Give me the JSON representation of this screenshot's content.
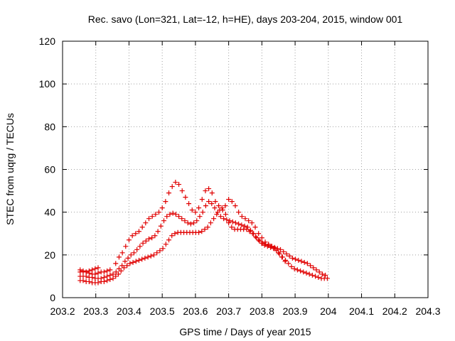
{
  "chart_data": {
    "type": "scatter",
    "title": "Rec. savo (Lon=321, Lat=-12, h=HE), days 203-204, 2015, window 001",
    "xlabel": "GPS time / Days of year 2015",
    "ylabel": "STEC from uqrg / TECUs",
    "xlim": [
      203.2,
      204.3
    ],
    "ylim": [
      0,
      120
    ],
    "x_ticks": [
      "203.2",
      "203.3",
      "203.4",
      "203.5",
      "203.6",
      "203.7",
      "203.8",
      "203.9",
      "204",
      "204.1",
      "204.2",
      "204.3"
    ],
    "y_ticks": [
      "0",
      "20",
      "40",
      "60",
      "80",
      "100",
      "120"
    ],
    "grid": true,
    "marker": "plus",
    "color": "#e00000",
    "points": [
      [
        203.253,
        8
      ],
      [
        203.262,
        8
      ],
      [
        203.271,
        7.5
      ],
      [
        203.28,
        7.5
      ],
      [
        203.289,
        7
      ],
      [
        203.298,
        7
      ],
      [
        203.307,
        7
      ],
      [
        203.316,
        7.5
      ],
      [
        203.325,
        7.5
      ],
      [
        203.334,
        8
      ],
      [
        203.343,
        8.5
      ],
      [
        203.253,
        10
      ],
      [
        203.262,
        10
      ],
      [
        203.271,
        10
      ],
      [
        203.28,
        9.5
      ],
      [
        203.289,
        9.5
      ],
      [
        203.298,
        9
      ],
      [
        203.307,
        9
      ],
      [
        203.316,
        9
      ],
      [
        203.325,
        9.5
      ],
      [
        203.334,
        10
      ],
      [
        203.343,
        10.5
      ],
      [
        203.253,
        12
      ],
      [
        203.262,
        12
      ],
      [
        203.271,
        12
      ],
      [
        203.28,
        11.5
      ],
      [
        203.289,
        11
      ],
      [
        203.298,
        11
      ],
      [
        203.307,
        11.5
      ],
      [
        203.316,
        12
      ],
      [
        203.325,
        12
      ],
      [
        203.334,
        12.5
      ],
      [
        203.343,
        13
      ],
      [
        203.253,
        13
      ],
      [
        203.262,
        12.5
      ],
      [
        203.271,
        12
      ],
      [
        203.28,
        12.5
      ],
      [
        203.289,
        13
      ],
      [
        203.298,
        13.5
      ],
      [
        203.307,
        14
      ],
      [
        203.352,
        9
      ],
      [
        203.36,
        10
      ],
      [
        203.368,
        11
      ],
      [
        203.376,
        12.5
      ],
      [
        203.385,
        14
      ],
      [
        203.394,
        15
      ],
      [
        203.403,
        16
      ],
      [
        203.412,
        16.5
      ],
      [
        203.421,
        17
      ],
      [
        203.43,
        17.5
      ],
      [
        203.439,
        18
      ],
      [
        203.448,
        18.5
      ],
      [
        203.457,
        19
      ],
      [
        203.466,
        19.5
      ],
      [
        203.475,
        20
      ],
      [
        203.484,
        21
      ],
      [
        203.493,
        22
      ],
      [
        203.502,
        23
      ],
      [
        203.511,
        25
      ],
      [
        203.52,
        27
      ],
      [
        203.529,
        29
      ],
      [
        203.538,
        30
      ],
      [
        203.547,
        30.5
      ],
      [
        203.556,
        30.5
      ],
      [
        203.565,
        30.5
      ],
      [
        203.574,
        30.5
      ],
      [
        203.583,
        30.5
      ],
      [
        203.592,
        30.5
      ],
      [
        203.601,
        30.5
      ],
      [
        203.61,
        30.5
      ],
      [
        203.619,
        31
      ],
      [
        203.628,
        32
      ],
      [
        203.637,
        33
      ],
      [
        203.646,
        35
      ],
      [
        203.655,
        37
      ],
      [
        203.664,
        39
      ],
      [
        203.673,
        41
      ],
      [
        203.682,
        41
      ],
      [
        203.691,
        39
      ],
      [
        203.7,
        35
      ],
      [
        203.709,
        33
      ],
      [
        203.718,
        32
      ],
      [
        203.727,
        32
      ],
      [
        203.736,
        32
      ],
      [
        203.745,
        32
      ],
      [
        203.754,
        32
      ],
      [
        203.763,
        31
      ],
      [
        203.772,
        30
      ],
      [
        203.781,
        28.5
      ],
      [
        203.79,
        27
      ],
      [
        203.799,
        25.5
      ],
      [
        203.808,
        24.5
      ],
      [
        203.817,
        24
      ],
      [
        203.826,
        23.5
      ],
      [
        203.835,
        23
      ],
      [
        203.844,
        22
      ],
      [
        203.853,
        20.5
      ],
      [
        203.862,
        19
      ],
      [
        203.871,
        17.5
      ],
      [
        203.88,
        16
      ],
      [
        203.889,
        14.5
      ],
      [
        203.898,
        13.5
      ],
      [
        203.907,
        13
      ],
      [
        203.916,
        12.5
      ],
      [
        203.925,
        12
      ],
      [
        203.934,
        11.5
      ],
      [
        203.943,
        11
      ],
      [
        203.952,
        10.5
      ],
      [
        203.961,
        10
      ],
      [
        203.97,
        9.5
      ],
      [
        203.979,
        9
      ],
      [
        203.988,
        9
      ],
      [
        203.997,
        9
      ],
      [
        203.352,
        11
      ],
      [
        203.361,
        12
      ],
      [
        203.37,
        13.5
      ],
      [
        203.379,
        15
      ],
      [
        203.388,
        17
      ],
      [
        203.397,
        18.5
      ],
      [
        203.406,
        20
      ],
      [
        203.415,
        21
      ],
      [
        203.424,
        22.5
      ],
      [
        203.433,
        24
      ],
      [
        203.442,
        25.5
      ],
      [
        203.451,
        26.5
      ],
      [
        203.46,
        27.5
      ],
      [
        203.469,
        28
      ],
      [
        203.478,
        29
      ],
      [
        203.487,
        31
      ],
      [
        203.496,
        33.5
      ],
      [
        203.505,
        36
      ],
      [
        203.514,
        38
      ],
      [
        203.523,
        39
      ],
      [
        203.532,
        39.5
      ],
      [
        203.541,
        39
      ],
      [
        203.55,
        38
      ],
      [
        203.559,
        37
      ],
      [
        203.568,
        36
      ],
      [
        203.577,
        35
      ],
      [
        203.586,
        34.5
      ],
      [
        203.595,
        35
      ],
      [
        203.604,
        36
      ],
      [
        203.613,
        38
      ],
      [
        203.622,
        40
      ],
      [
        203.631,
        43
      ],
      [
        203.64,
        45
      ],
      [
        203.649,
        44
      ],
      [
        203.658,
        42
      ],
      [
        203.667,
        40
      ],
      [
        203.676,
        38
      ],
      [
        203.685,
        37
      ],
      [
        203.694,
        36.5
      ],
      [
        203.703,
        36
      ],
      [
        203.712,
        35.5
      ],
      [
        203.721,
        35
      ],
      [
        203.73,
        34.5
      ],
      [
        203.739,
        34
      ],
      [
        203.748,
        33.5
      ],
      [
        203.757,
        33
      ],
      [
        203.766,
        31.5
      ],
      [
        203.775,
        30
      ],
      [
        203.784,
        28
      ],
      [
        203.793,
        26.5
      ],
      [
        203.802,
        25.5
      ],
      [
        203.811,
        25
      ],
      [
        203.82,
        24.5
      ],
      [
        203.829,
        24
      ],
      [
        203.838,
        23.5
      ],
      [
        203.847,
        23
      ],
      [
        203.856,
        22.5
      ],
      [
        203.865,
        21.5
      ],
      [
        203.874,
        20.5
      ],
      [
        203.883,
        19.5
      ],
      [
        203.892,
        18.5
      ],
      [
        203.901,
        18
      ],
      [
        203.91,
        17.5
      ],
      [
        203.919,
        17
      ],
      [
        203.928,
        16.5
      ],
      [
        203.937,
        16
      ],
      [
        203.946,
        15
      ],
      [
        203.955,
        14
      ],
      [
        203.964,
        13
      ],
      [
        203.973,
        12
      ],
      [
        203.982,
        11
      ],
      [
        203.991,
        10.5
      ],
      [
        203.36,
        16
      ],
      [
        203.37,
        19
      ],
      [
        203.38,
        21
      ],
      [
        203.39,
        24
      ],
      [
        203.4,
        27
      ],
      [
        203.41,
        29
      ],
      [
        203.42,
        30
      ],
      [
        203.43,
        31
      ],
      [
        203.44,
        33
      ],
      [
        203.45,
        35
      ],
      [
        203.46,
        37
      ],
      [
        203.47,
        38
      ],
      [
        203.48,
        39
      ],
      [
        203.49,
        40
      ],
      [
        203.5,
        42
      ],
      [
        203.51,
        45
      ],
      [
        203.52,
        49
      ],
      [
        203.53,
        52
      ],
      [
        203.54,
        54
      ],
      [
        203.55,
        53
      ],
      [
        203.56,
        50
      ],
      [
        203.57,
        47
      ],
      [
        203.58,
        44
      ],
      [
        203.59,
        41
      ],
      [
        203.6,
        40
      ],
      [
        203.61,
        42
      ],
      [
        203.62,
        46
      ],
      [
        203.63,
        50
      ],
      [
        203.64,
        51
      ],
      [
        203.65,
        49
      ],
      [
        203.66,
        45
      ],
      [
        203.67,
        43
      ],
      [
        203.68,
        42
      ],
      [
        203.69,
        43
      ],
      [
        203.7,
        46
      ],
      [
        203.71,
        45
      ],
      [
        203.72,
        43
      ],
      [
        203.73,
        40
      ],
      [
        203.74,
        38
      ],
      [
        203.75,
        37
      ],
      [
        203.76,
        36
      ],
      [
        203.77,
        35
      ],
      [
        203.78,
        33
      ],
      [
        203.79,
        30
      ],
      [
        203.8,
        28
      ],
      [
        203.81,
        26
      ],
      [
        203.82,
        25
      ],
      [
        203.83,
        24
      ],
      [
        203.84,
        23
      ],
      [
        203.85,
        21
      ],
      [
        203.86,
        19
      ],
      [
        203.87,
        17
      ]
    ]
  }
}
